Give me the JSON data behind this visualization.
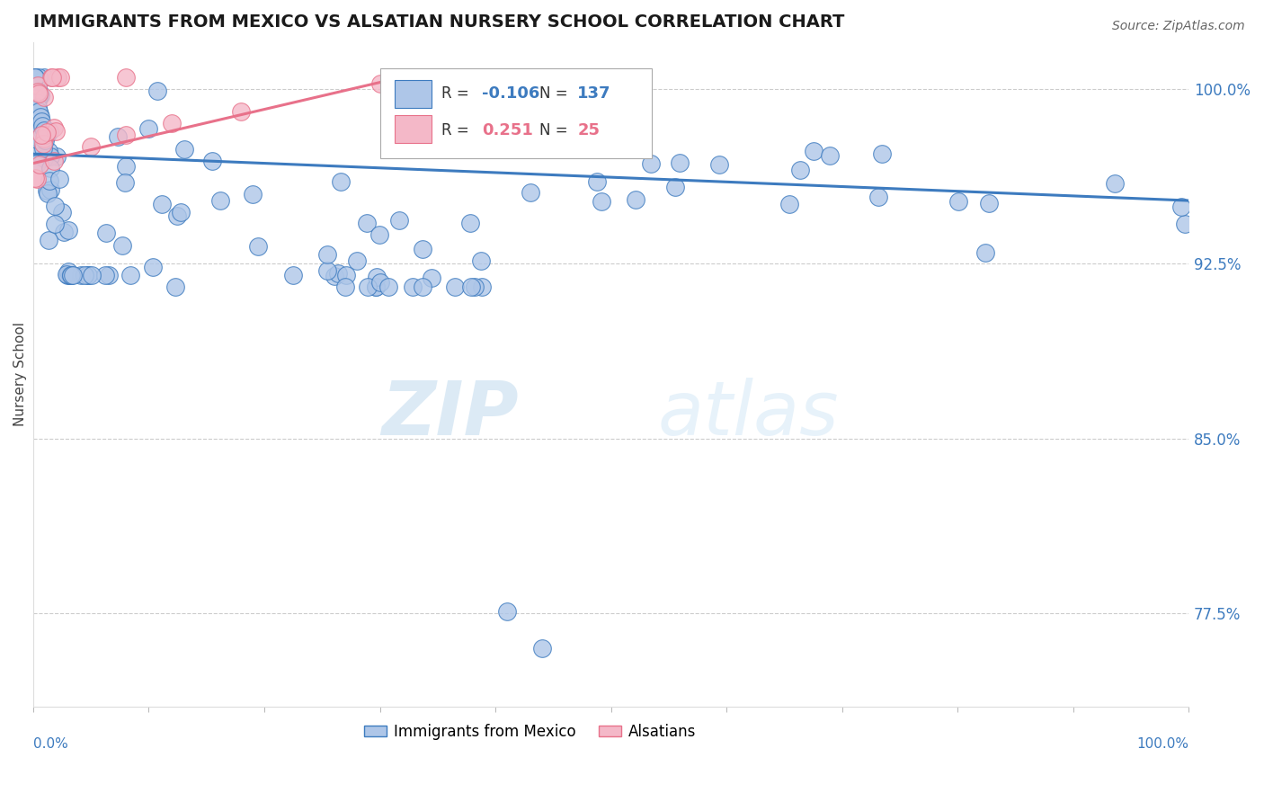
{
  "title": "IMMIGRANTS FROM MEXICO VS ALSATIAN NURSERY SCHOOL CORRELATION CHART",
  "source": "Source: ZipAtlas.com",
  "ylabel": "Nursery School",
  "legend_label1": "Immigrants from Mexico",
  "legend_label2": "Alsatians",
  "r_blue": -0.106,
  "n_blue": 137,
  "r_pink": 0.251,
  "n_pink": 25,
  "ytick_labels": [
    "100.0%",
    "92.5%",
    "85.0%",
    "77.5%"
  ],
  "ytick_values": [
    1.0,
    0.925,
    0.85,
    0.775
  ],
  "xlim": [
    0.0,
    1.0
  ],
  "ylim": [
    0.735,
    1.02
  ],
  "color_blue": "#aec6e8",
  "color_blue_line": "#3d7bbf",
  "color_pink": "#f4b8c8",
  "color_pink_line": "#e8718a",
  "watermark_zip": "ZIP",
  "watermark_atlas": "atlas",
  "blue_line_x": [
    0.0,
    1.0
  ],
  "blue_line_y": [
    0.972,
    0.952
  ],
  "pink_line_x": [
    0.0,
    0.32
  ],
  "pink_line_y": [
    0.968,
    1.005
  ]
}
